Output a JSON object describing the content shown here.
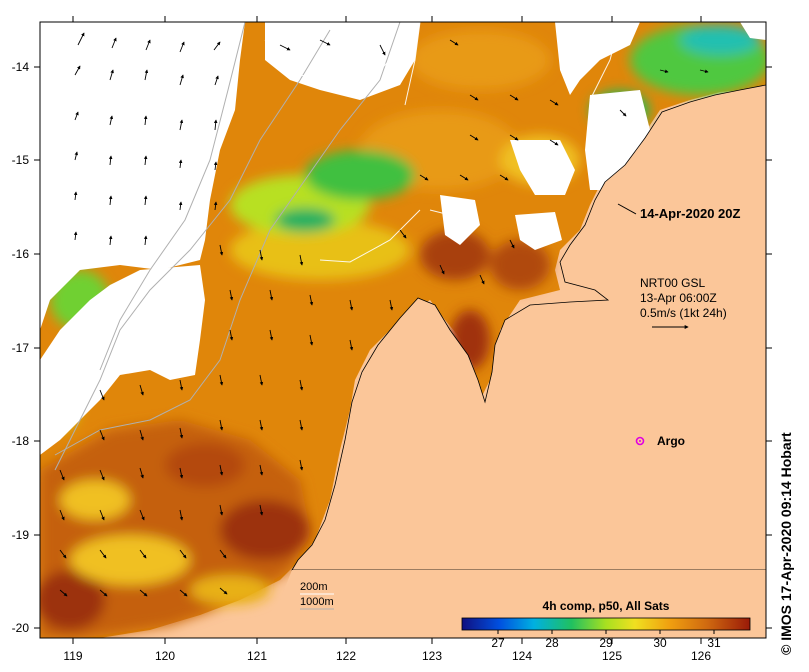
{
  "map": {
    "longitude_ticks": [
      "119",
      "120",
      "121",
      "122",
      "123",
      "124",
      "125",
      "126"
    ],
    "latitude_ticks": [
      "-14",
      "-15",
      "-16",
      "-17",
      "-18",
      "-19",
      "-20"
    ],
    "timestamp_label": "14-Apr-2020 20Z",
    "current_legend": {
      "line1": "NRT00 GSL",
      "line2": "13-Apr 06:00Z",
      "line3": "0.5m/s (1kt 24h)"
    },
    "argo_label": "Argo",
    "contour_legend": {
      "line1": "200m",
      "line2": "1000m"
    },
    "colorbar": {
      "title": "4h comp, p50, All Sats",
      "labels": [
        "27",
        "28",
        "29",
        "30",
        "31"
      ]
    },
    "credit": "© IMOS 17-Apr-2020 09:14 Hobart",
    "colors": {
      "land": "#fbc699",
      "no_data": "#ffffff",
      "argo_marker": "#e000e0"
    }
  }
}
